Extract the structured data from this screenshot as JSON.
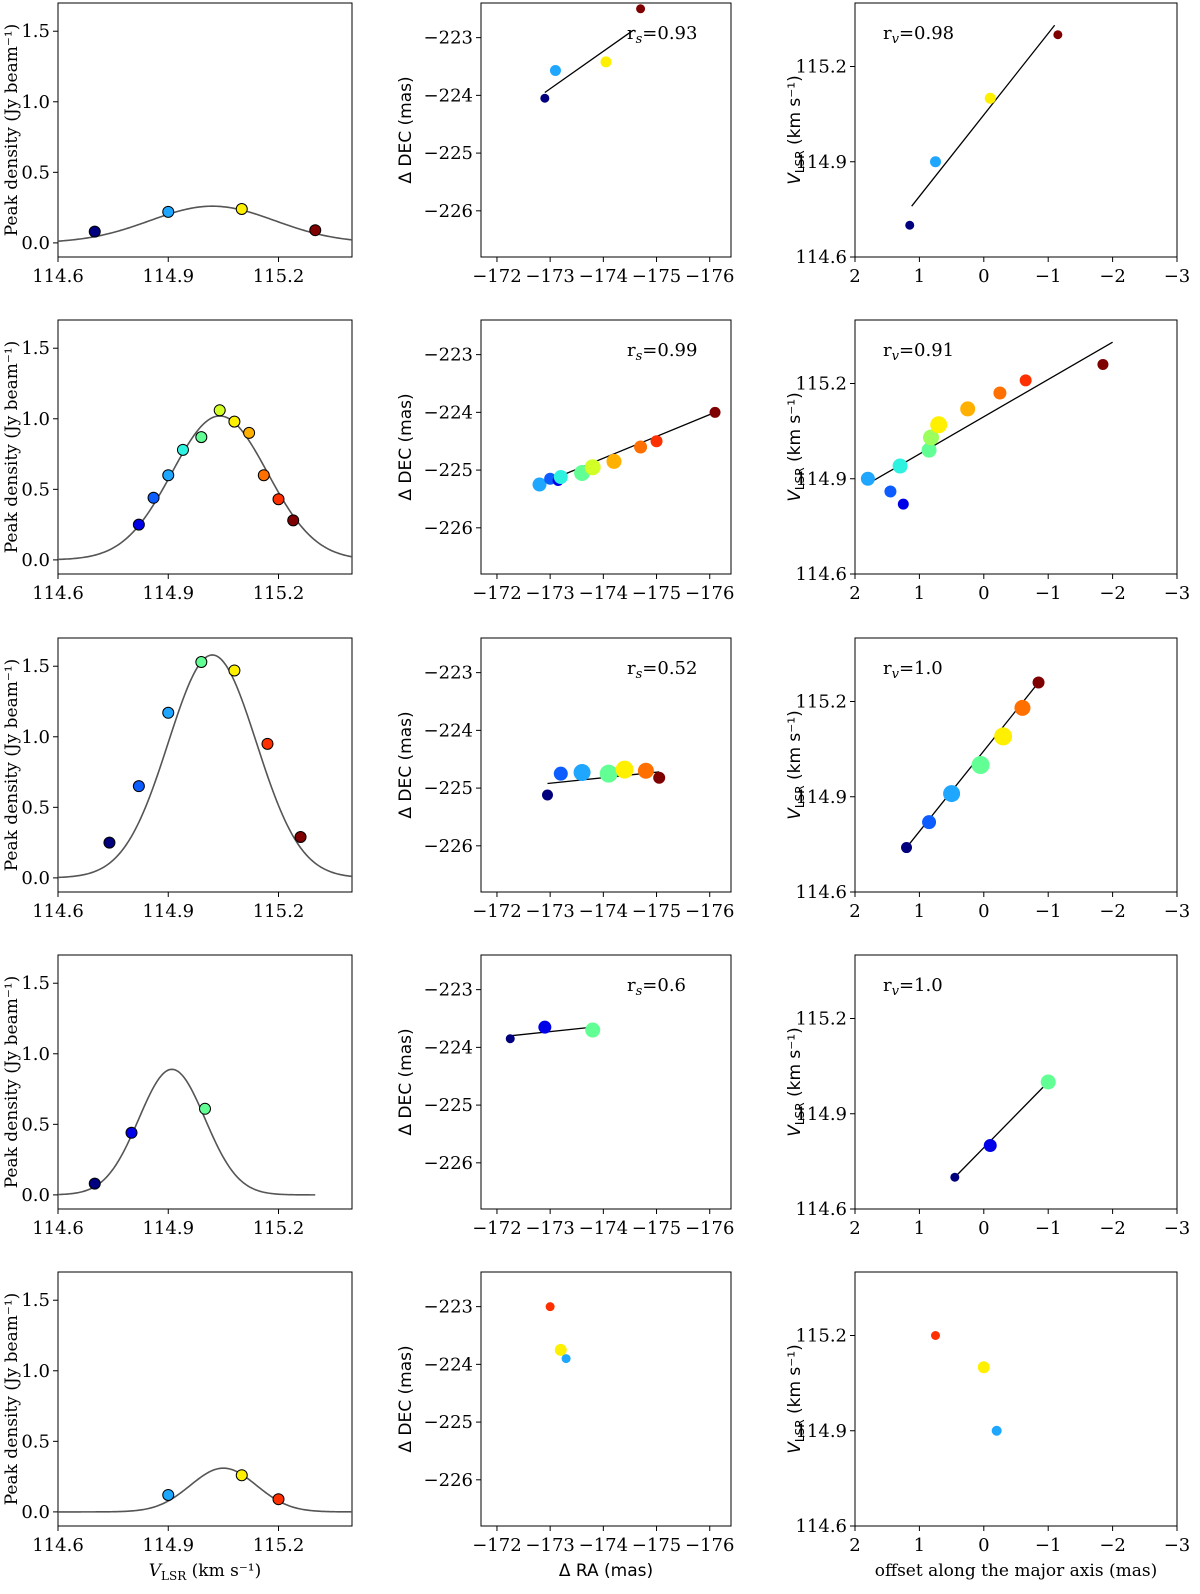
{
  "figure": {
    "layout": {
      "rows": 5,
      "columns": 3
    },
    "column_types": [
      "peak-density-spectrum",
      "sky-position",
      "velocity-gradient"
    ]
  },
  "colormap": [
    "#00007f",
    "#0000e8",
    "#0c5cff",
    "#1fa6ff",
    "#2df2e0",
    "#61ff94",
    "#9cff5b",
    "#d2ff25",
    "#fff000",
    "#ffb000",
    "#ff7000",
    "#ff3000",
    "#d80000",
    "#7f0000"
  ],
  "axes_text": {
    "col1": {
      "ylabel": "Peak density (Jy beam⁻¹)",
      "xlabel_main": "V",
      "xlabel_sub": "LSR",
      "xlabel_unit": " (km s⁻¹)",
      "xticks": [
        "114.6",
        "114.9",
        "115.2"
      ],
      "yticks": [
        "0.0",
        "0.5",
        "1.0",
        "1.5"
      ]
    },
    "col2": {
      "ylabel": "Δ DEC (mas)",
      "xlabel": "Δ RA (mas)",
      "xticks": [
        "−172",
        "−173",
        "−174",
        "−175",
        "−176"
      ],
      "yticks": [
        "−223",
        "−224",
        "−225",
        "−226"
      ]
    },
    "col3": {
      "ylabel_main": "V",
      "ylabel_sub": "LSR",
      "ylabel_unit": " (km s⁻¹)",
      "xlabel": "offset along the major axis (mas)",
      "xticks": [
        "2",
        "1",
        "0",
        "−1",
        "−2",
        "−3"
      ],
      "yticks": [
        "114.6",
        "114.9",
        "115.2"
      ]
    }
  },
  "chart_data": [
    {
      "row": 1,
      "column": 1,
      "type": "line+scatter",
      "xlim": [
        114.6,
        115.4
      ],
      "ylim": [
        -0.1,
        1.7
      ],
      "points": [
        {
          "x": 114.7,
          "y": 0.08,
          "c": 0
        },
        {
          "x": 114.9,
          "y": 0.22,
          "c": 3
        },
        {
          "x": 115.1,
          "y": 0.24,
          "c": 8
        },
        {
          "x": 115.3,
          "y": 0.09,
          "c": 13
        }
      ],
      "fit": {
        "amplitude": 0.26,
        "center": 115.02,
        "sigma": 0.17
      }
    },
    {
      "row": 1,
      "column": 2,
      "type": "scatter",
      "xlim": [
        -171.7,
        -176.4
      ],
      "ylim": [
        -226.8,
        -222.4
      ],
      "annotation": "r_s=0.93",
      "points": [
        {
          "x": -172.9,
          "y": -224.05,
          "c": 0,
          "s": 9
        },
        {
          "x": -173.1,
          "y": -223.57,
          "c": 3,
          "s": 11
        },
        {
          "x": -174.05,
          "y": -223.42,
          "c": 8,
          "s": 11
        },
        {
          "x": -174.7,
          "y": -222.5,
          "c": 13,
          "s": 9
        }
      ],
      "fit": {
        "x": [
          -172.9,
          -174.55
        ],
        "y": [
          -223.95,
          -222.88
        ]
      }
    },
    {
      "row": 1,
      "column": 3,
      "type": "scatter",
      "xlim": [
        2,
        -3
      ],
      "ylim": [
        114.6,
        115.4
      ],
      "annotation": "r_v=0.98",
      "points": [
        {
          "x": 1.15,
          "y": 114.7,
          "c": 0,
          "s": 9
        },
        {
          "x": 0.75,
          "y": 114.9,
          "c": 3,
          "s": 11
        },
        {
          "x": -0.1,
          "y": 115.1,
          "c": 8,
          "s": 11
        },
        {
          "x": -1.15,
          "y": 115.3,
          "c": 13,
          "s": 9
        }
      ],
      "fit": {
        "x": [
          1.12,
          -1.1
        ],
        "y": [
          114.76,
          115.33
        ]
      }
    },
    {
      "row": 2,
      "column": 1,
      "type": "line+scatter",
      "xlim": [
        114.6,
        115.4
      ],
      "ylim": [
        -0.1,
        1.7
      ],
      "points": [
        {
          "x": 114.82,
          "y": 0.25,
          "c": 1
        },
        {
          "x": 114.86,
          "y": 0.44,
          "c": 2
        },
        {
          "x": 114.9,
          "y": 0.6,
          "c": 3
        },
        {
          "x": 114.94,
          "y": 0.78,
          "c": 4
        },
        {
          "x": 114.99,
          "y": 0.87,
          "c": 5
        },
        {
          "x": 115.04,
          "y": 1.06,
          "c": 7
        },
        {
          "x": 115.08,
          "y": 0.98,
          "c": 8
        },
        {
          "x": 115.12,
          "y": 0.9,
          "c": 9
        },
        {
          "x": 115.16,
          "y": 0.6,
          "c": 10
        },
        {
          "x": 115.2,
          "y": 0.43,
          "c": 11
        },
        {
          "x": 115.24,
          "y": 0.28,
          "c": 13
        }
      ],
      "fit": {
        "amplitude": 1.02,
        "center": 115.04,
        "sigma": 0.13
      }
    },
    {
      "row": 2,
      "column": 2,
      "type": "scatter",
      "xlim": [
        -171.7,
        -176.4
      ],
      "ylim": [
        -226.8,
        -222.4
      ],
      "annotation": "r_s=0.99",
      "points": [
        {
          "x": -172.8,
          "y": -225.25,
          "c": 3,
          "s": 14
        },
        {
          "x": -173.0,
          "y": -225.15,
          "c": 2,
          "s": 12
        },
        {
          "x": -173.15,
          "y": -225.18,
          "c": 1,
          "s": 11
        },
        {
          "x": -173.2,
          "y": -225.12,
          "c": 4,
          "s": 14
        },
        {
          "x": -173.6,
          "y": -225.05,
          "c": 5,
          "s": 16
        },
        {
          "x": -173.8,
          "y": -224.95,
          "c": 7,
          "s": 16
        },
        {
          "x": -174.2,
          "y": -224.85,
          "c": 9,
          "s": 15
        },
        {
          "x": -174.7,
          "y": -224.6,
          "c": 10,
          "s": 13
        },
        {
          "x": -175.0,
          "y": -224.5,
          "c": 11,
          "s": 12
        },
        {
          "x": -176.1,
          "y": -224.0,
          "c": 13,
          "s": 11
        }
      ],
      "fit": {
        "x": [
          -172.8,
          -176.1
        ],
        "y": [
          -225.25,
          -224.0
        ]
      }
    },
    {
      "row": 2,
      "column": 3,
      "type": "scatter",
      "xlim": [
        2,
        -3
      ],
      "ylim": [
        114.6,
        115.4
      ],
      "annotation": "r_v=0.91",
      "points": [
        {
          "x": 1.8,
          "y": 114.9,
          "c": 3,
          "s": 14
        },
        {
          "x": 1.45,
          "y": 114.86,
          "c": 2,
          "s": 12
        },
        {
          "x": 1.25,
          "y": 114.82,
          "c": 1,
          "s": 11
        },
        {
          "x": 1.3,
          "y": 114.94,
          "c": 4,
          "s": 15
        },
        {
          "x": 0.85,
          "y": 114.99,
          "c": 5,
          "s": 15
        },
        {
          "x": 0.82,
          "y": 115.03,
          "c": 6,
          "s": 16
        },
        {
          "x": 0.7,
          "y": 115.07,
          "c": 8,
          "s": 17
        },
        {
          "x": 0.25,
          "y": 115.12,
          "c": 9,
          "s": 15
        },
        {
          "x": -0.25,
          "y": 115.17,
          "c": 10,
          "s": 13
        },
        {
          "x": -0.65,
          "y": 115.21,
          "c": 11,
          "s": 12
        },
        {
          "x": -1.85,
          "y": 115.26,
          "c": 13,
          "s": 11
        }
      ],
      "fit": {
        "x": [
          1.75,
          -2.0
        ],
        "y": [
          114.89,
          115.33
        ]
      }
    },
    {
      "row": 3,
      "column": 1,
      "type": "line+scatter",
      "xlim": [
        114.6,
        115.4
      ],
      "ylim": [
        -0.1,
        1.7
      ],
      "points": [
        {
          "x": 114.74,
          "y": 0.25,
          "c": 0
        },
        {
          "x": 114.82,
          "y": 0.65,
          "c": 2
        },
        {
          "x": 114.9,
          "y": 1.17,
          "c": 3
        },
        {
          "x": 114.99,
          "y": 1.53,
          "c": 5
        },
        {
          "x": 115.08,
          "y": 1.47,
          "c": 8
        },
        {
          "x": 115.17,
          "y": 0.95,
          "c": 11
        },
        {
          "x": 115.26,
          "y": 0.29,
          "c": 13
        }
      ],
      "fit": {
        "amplitude": 1.58,
        "center": 115.02,
        "sigma": 0.12
      }
    },
    {
      "row": 3,
      "column": 2,
      "type": "scatter",
      "xlim": [
        -171.7,
        -176.4
      ],
      "ylim": [
        -226.8,
        -222.4
      ],
      "annotation": "r_s=0.52",
      "points": [
        {
          "x": -172.95,
          "y": -225.12,
          "c": 0,
          "s": 11
        },
        {
          "x": -173.2,
          "y": -224.75,
          "c": 2,
          "s": 14
        },
        {
          "x": -173.6,
          "y": -224.73,
          "c": 3,
          "s": 17
        },
        {
          "x": -174.1,
          "y": -224.75,
          "c": 5,
          "s": 18
        },
        {
          "x": -174.4,
          "y": -224.68,
          "c": 8,
          "s": 18
        },
        {
          "x": -174.8,
          "y": -224.7,
          "c": 10,
          "s": 16
        },
        {
          "x": -175.05,
          "y": -224.82,
          "c": 13,
          "s": 12
        }
      ],
      "fit": {
        "x": [
          -172.95,
          -175.05
        ],
        "y": [
          -224.92,
          -224.72
        ]
      }
    },
    {
      "row": 3,
      "column": 3,
      "type": "scatter",
      "xlim": [
        2,
        -3
      ],
      "ylim": [
        114.6,
        115.4
      ],
      "annotation": "r_v=1.0",
      "points": [
        {
          "x": 1.2,
          "y": 114.74,
          "c": 0,
          "s": 11
        },
        {
          "x": 0.85,
          "y": 114.82,
          "c": 2,
          "s": 14
        },
        {
          "x": 0.5,
          "y": 114.91,
          "c": 3,
          "s": 17
        },
        {
          "x": 0.05,
          "y": 115.0,
          "c": 5,
          "s": 18
        },
        {
          "x": -0.3,
          "y": 115.09,
          "c": 8,
          "s": 18
        },
        {
          "x": -0.6,
          "y": 115.18,
          "c": 10,
          "s": 16
        },
        {
          "x": -0.85,
          "y": 115.26,
          "c": 13,
          "s": 12
        }
      ],
      "fit": {
        "x": [
          1.2,
          -0.85
        ],
        "y": [
          114.74,
          115.26
        ]
      }
    },
    {
      "row": 4,
      "column": 1,
      "type": "line+scatter",
      "xlim": [
        114.6,
        115.4
      ],
      "ylim": [
        -0.1,
        1.7
      ],
      "points": [
        {
          "x": 114.7,
          "y": 0.08,
          "c": 0
        },
        {
          "x": 114.8,
          "y": 0.44,
          "c": 1
        },
        {
          "x": 115.0,
          "y": 0.61,
          "c": 5
        }
      ],
      "fit": {
        "amplitude": 0.89,
        "center": 114.91,
        "sigma": 0.09,
        "range": [
          114.6,
          115.3
        ]
      }
    },
    {
      "row": 4,
      "column": 2,
      "type": "scatter",
      "xlim": [
        -171.7,
        -176.4
      ],
      "ylim": [
        -226.8,
        -222.4
      ],
      "annotation": "r_s=0.6",
      "points": [
        {
          "x": -172.25,
          "y": -223.85,
          "c": 0,
          "s": 9
        },
        {
          "x": -172.9,
          "y": -223.65,
          "c": 1,
          "s": 13
        },
        {
          "x": -173.8,
          "y": -223.7,
          "c": 5,
          "s": 15
        }
      ],
      "fit": {
        "x": [
          -172.25,
          -173.8
        ],
        "y": [
          -223.8,
          -223.65
        ]
      }
    },
    {
      "row": 4,
      "column": 3,
      "type": "scatter",
      "xlim": [
        2,
        -3
      ],
      "ylim": [
        114.6,
        115.4
      ],
      "annotation": "r_v=1.0",
      "points": [
        {
          "x": 0.45,
          "y": 114.7,
          "c": 0,
          "s": 9
        },
        {
          "x": -0.1,
          "y": 114.8,
          "c": 1,
          "s": 13
        },
        {
          "x": -1.0,
          "y": 115.0,
          "c": 5,
          "s": 15
        }
      ],
      "fit": {
        "x": [
          0.45,
          -1.0
        ],
        "y": [
          114.7,
          115.0
        ]
      }
    },
    {
      "row": 5,
      "column": 1,
      "type": "line+scatter",
      "xlim": [
        114.6,
        115.4
      ],
      "ylim": [
        -0.1,
        1.7
      ],
      "points": [
        {
          "x": 114.9,
          "y": 0.12,
          "c": 3
        },
        {
          "x": 115.1,
          "y": 0.26,
          "c": 8
        },
        {
          "x": 115.2,
          "y": 0.09,
          "c": 11
        }
      ],
      "fit": {
        "amplitude": 0.31,
        "center": 115.05,
        "sigma": 0.09
      }
    },
    {
      "row": 5,
      "column": 2,
      "type": "scatter",
      "xlim": [
        -171.7,
        -176.4
      ],
      "ylim": [
        -226.8,
        -222.4
      ],
      "points": [
        {
          "x": -173.0,
          "y": -223.0,
          "c": 11,
          "s": 9
        },
        {
          "x": -173.2,
          "y": -223.75,
          "c": 8,
          "s": 12
        },
        {
          "x": -173.3,
          "y": -223.9,
          "c": 3,
          "s": 9
        }
      ]
    },
    {
      "row": 5,
      "column": 3,
      "type": "scatter",
      "xlim": [
        2,
        -3
      ],
      "ylim": [
        114.6,
        115.4
      ],
      "points": [
        {
          "x": 0.75,
          "y": 115.2,
          "c": 11,
          "s": 9
        },
        {
          "x": 0.0,
          "y": 115.1,
          "c": 8,
          "s": 12
        },
        {
          "x": -0.2,
          "y": 114.9,
          "c": 3,
          "s": 10
        }
      ]
    }
  ]
}
